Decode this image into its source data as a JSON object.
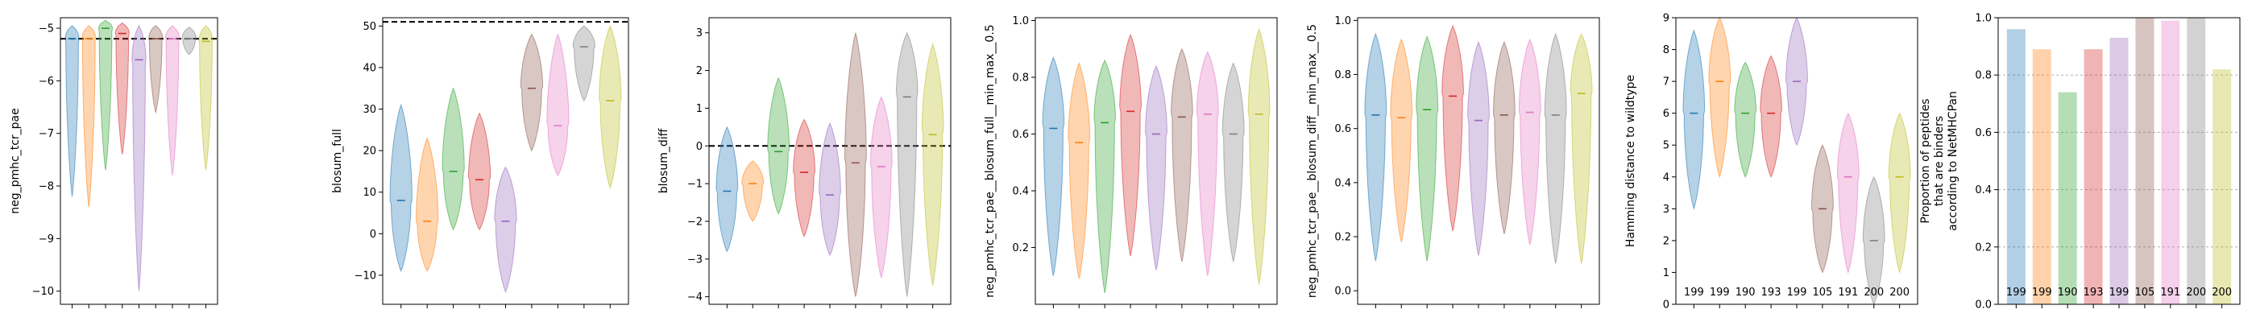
{
  "figure": {
    "background": "#ffffff"
  },
  "colors": [
    "#1f77b4",
    "#ff7f0e",
    "#2ca02c",
    "#d62728",
    "#9467bd",
    "#8c564b",
    "#e377c2",
    "#7f7f7f",
    "#bcbd22"
  ],
  "chart_data": [
    {
      "type": "violin",
      "ylabel": "neg_pmhc_tcr_pae",
      "ylim": [
        -10.25,
        -4.8
      ],
      "yticks": [
        -10,
        -9,
        -8,
        -7,
        -6,
        -5
      ],
      "ref_line": -5.2,
      "series": [
        {
          "min": -8.2,
          "median": -5.2,
          "max": -4.95
        },
        {
          "min": -8.4,
          "median": -5.2,
          "max": -4.95
        },
        {
          "min": -7.7,
          "median": -5.0,
          "max": -4.85
        },
        {
          "min": -7.4,
          "median": -5.1,
          "max": -4.9
        },
        {
          "min": -10.0,
          "median": -5.6,
          "max": -4.95
        },
        {
          "min": -6.6,
          "median": -5.2,
          "max": -4.95
        },
        {
          "min": -7.8,
          "median": -5.2,
          "max": -4.95
        },
        {
          "min": -5.5,
          "median": -5.2,
          "max": -4.98
        },
        {
          "min": -7.7,
          "median": -5.25,
          "max": -4.95
        }
      ]
    },
    {
      "type": "violin",
      "ylabel": "blosum_full",
      "ylim": [
        -17,
        52
      ],
      "yticks": [
        -10,
        0,
        10,
        20,
        30,
        40,
        50
      ],
      "ref_line": 51,
      "series": [
        {
          "min": -9,
          "median": 8,
          "max": 31
        },
        {
          "min": -9,
          "median": 3,
          "max": 23
        },
        {
          "min": 1,
          "median": 15,
          "max": 35
        },
        {
          "min": 1,
          "median": 13,
          "max": 29
        },
        {
          "min": -14,
          "median": 3,
          "max": 16
        },
        {
          "min": 20,
          "median": 35,
          "max": 48
        },
        {
          "min": 14,
          "median": 26,
          "max": 48
        },
        {
          "min": 32,
          "median": 45,
          "max": 50
        },
        {
          "min": 11,
          "median": 32,
          "max": 50
        }
      ]
    },
    {
      "type": "violin",
      "ylabel": "blosum_diff",
      "ylim": [
        -4.2,
        3.4
      ],
      "yticks": [
        -4,
        -3,
        -2,
        -1,
        0,
        1,
        2,
        3
      ],
      "ref_line": 0,
      "series": [
        {
          "min": -2.8,
          "median": -1.2,
          "max": 0.5
        },
        {
          "min": -2.0,
          "median": -1.0,
          "max": -0.4
        },
        {
          "min": -1.8,
          "median": -0.15,
          "max": 1.8
        },
        {
          "min": -2.4,
          "median": -0.7,
          "max": 0.7
        },
        {
          "min": -2.9,
          "median": -1.3,
          "max": 0.6
        },
        {
          "min": -4.0,
          "median": -0.45,
          "max": 3.0
        },
        {
          "min": -3.5,
          "median": -0.55,
          "max": 1.3
        },
        {
          "min": -4.0,
          "median": 1.3,
          "max": 3.0
        },
        {
          "min": -3.7,
          "median": 0.3,
          "max": 2.7
        }
      ]
    },
    {
      "type": "violin",
      "ylabel": "neg_pmhc_tcr_pae__blosum_full__min_max__0.5",
      "ylim": [
        0,
        1.01
      ],
      "yticks": [
        0.2,
        0.4,
        0.6,
        0.8,
        1.0
      ],
      "series": [
        {
          "min": 0.1,
          "median": 0.62,
          "max": 0.87
        },
        {
          "min": 0.09,
          "median": 0.57,
          "max": 0.85
        },
        {
          "min": 0.04,
          "median": 0.64,
          "max": 0.86
        },
        {
          "min": 0.17,
          "median": 0.68,
          "max": 0.95
        },
        {
          "min": 0.12,
          "median": 0.6,
          "max": 0.84
        },
        {
          "min": 0.15,
          "median": 0.66,
          "max": 0.9
        },
        {
          "min": 0.1,
          "median": 0.67,
          "max": 0.89
        },
        {
          "min": 0.15,
          "median": 0.6,
          "max": 0.85
        },
        {
          "min": 0.07,
          "median": 0.67,
          "max": 0.97
        }
      ]
    },
    {
      "type": "violin",
      "ylabel": "neg_pmhc_tcr_pae__blosum_diff__min_max__0.5",
      "ylim": [
        -0.05,
        1.01
      ],
      "yticks": [
        0.0,
        0.2,
        0.4,
        0.6,
        0.8,
        1.0
      ],
      "series": [
        {
          "min": 0.11,
          "median": 0.65,
          "max": 0.95
        },
        {
          "min": 0.18,
          "median": 0.64,
          "max": 0.93
        },
        {
          "min": 0.11,
          "median": 0.67,
          "max": 0.94
        },
        {
          "min": 0.22,
          "median": 0.72,
          "max": 0.98
        },
        {
          "min": 0.13,
          "median": 0.63,
          "max": 0.92
        },
        {
          "min": 0.21,
          "median": 0.65,
          "max": 0.92
        },
        {
          "min": 0.17,
          "median": 0.66,
          "max": 0.93
        },
        {
          "min": 0.1,
          "median": 0.65,
          "max": 0.95
        },
        {
          "min": 0.1,
          "median": 0.73,
          "max": 0.95
        }
      ]
    },
    {
      "type": "violin",
      "ylabel": "Hamming distance to wildtype",
      "ylim": [
        0,
        9
      ],
      "yticks": [
        0,
        1,
        2,
        3,
        4,
        5,
        6,
        7,
        8,
        9
      ],
      "counts": [
        "199",
        "199",
        "190",
        "193",
        "199",
        "105",
        "191",
        "200",
        "200"
      ],
      "series": [
        {
          "min": 3,
          "median": 6,
          "max": 8.6
        },
        {
          "min": 4,
          "median": 7,
          "max": 9
        },
        {
          "min": 4,
          "median": 6,
          "max": 7.6
        },
        {
          "min": 4,
          "median": 6,
          "max": 7.8
        },
        {
          "min": 5,
          "median": 7,
          "max": 9
        },
        {
          "min": 1,
          "median": 3,
          "max": 5
        },
        {
          "min": 1,
          "median": 4,
          "max": 6
        },
        {
          "min": 0,
          "median": 2,
          "max": 4
        },
        {
          "min": 1,
          "median": 4,
          "max": 6
        }
      ]
    },
    {
      "type": "bar",
      "ylabel": "Proportion of peptides\nthat are binders\naccording to NetMHCPan",
      "ylim": [
        0,
        1.0
      ],
      "yticks": [
        0.0,
        0.2,
        0.4,
        0.6,
        0.8,
        1.0
      ],
      "grid": true,
      "counts": [
        "199",
        "199",
        "190",
        "193",
        "199",
        "105",
        "191",
        "200",
        "200"
      ],
      "values": [
        0.96,
        0.89,
        0.74,
        0.89,
        0.93,
        1.0,
        0.99,
        1.0,
        0.82
      ]
    }
  ]
}
